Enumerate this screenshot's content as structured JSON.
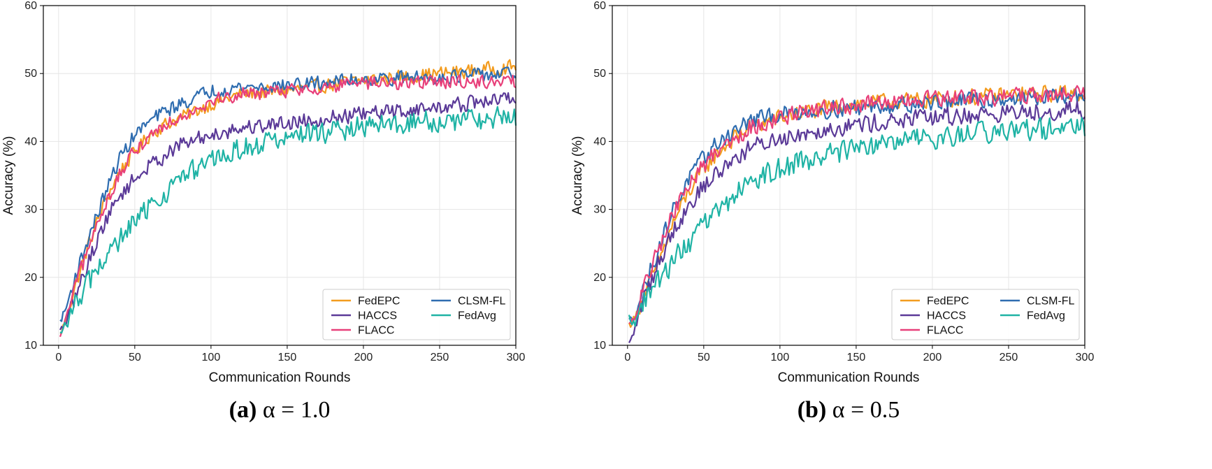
{
  "chart_data": [
    {
      "type": "line",
      "caption": {
        "letter": "(a)",
        "text": " α = 1.0"
      },
      "xlabel": "Communication Rounds",
      "ylabel": "Accuracy (%)",
      "xlim": [
        -10,
        300
      ],
      "ylim": [
        10,
        60
      ],
      "xticks": [
        0,
        50,
        100,
        150,
        200,
        250,
        300
      ],
      "yticks": [
        10,
        20,
        30,
        40,
        50,
        60
      ],
      "grid": true,
      "legend_position": "lower-right",
      "series": [
        {
          "name": "FedEPC",
          "color": "#f39c1f",
          "anchors": [
            [
              1,
              11.5
            ],
            [
              5,
              14
            ],
            [
              10,
              18
            ],
            [
              20,
              25
            ],
            [
              30,
              31
            ],
            [
              40,
              35.5
            ],
            [
              50,
              38.5
            ],
            [
              60,
              41
            ],
            [
              70,
              42.5
            ],
            [
              80,
              43.5
            ],
            [
              100,
              45.5
            ],
            [
              120,
              47
            ],
            [
              150,
              47.5
            ],
            [
              200,
              49
            ],
            [
              250,
              50
            ],
            [
              300,
              51
            ]
          ],
          "amp": 1.0
        },
        {
          "name": "CLSM-FL",
          "color": "#2f6db0",
          "anchors": [
            [
              1,
              13.5
            ],
            [
              5,
              15.5
            ],
            [
              10,
              19.5
            ],
            [
              20,
              26
            ],
            [
              30,
              32
            ],
            [
              40,
              37.5
            ],
            [
              50,
              41
            ],
            [
              60,
              43
            ],
            [
              70,
              44.5
            ],
            [
              80,
              45.5
            ],
            [
              100,
              47.5
            ],
            [
              120,
              48
            ],
            [
              150,
              48.2
            ],
            [
              200,
              49.2
            ],
            [
              250,
              49.5
            ],
            [
              300,
              50
            ]
          ],
          "amp": 1.0
        },
        {
          "name": "HACCS",
          "color": "#5b3a98",
          "anchors": [
            [
              1,
              12
            ],
            [
              5,
              13.5
            ],
            [
              10,
              16.5
            ],
            [
              20,
              22.5
            ],
            [
              30,
              28
            ],
            [
              40,
              32
            ],
            [
              50,
              34.5
            ],
            [
              60,
              36.5
            ],
            [
              70,
              38
            ],
            [
              80,
              39.5
            ],
            [
              100,
              41
            ],
            [
              120,
              42
            ],
            [
              150,
              42.8
            ],
            [
              200,
              44
            ],
            [
              250,
              45
            ],
            [
              300,
              46.5
            ]
          ],
          "amp": 1.1
        },
        {
          "name": "FLACC",
          "color": "#e8407a",
          "anchors": [
            [
              1,
              11
            ],
            [
              5,
              14
            ],
            [
              10,
              18
            ],
            [
              20,
              24.5
            ],
            [
              30,
              30.5
            ],
            [
              40,
              35
            ],
            [
              50,
              38.5
            ],
            [
              60,
              41
            ],
            [
              70,
              42.5
            ],
            [
              80,
              43.8
            ],
            [
              100,
              46
            ],
            [
              120,
              47
            ],
            [
              150,
              47.5
            ],
            [
              200,
              48.5
            ],
            [
              250,
              48.8
            ],
            [
              300,
              48.8
            ]
          ],
          "amp": 1.0
        },
        {
          "name": "FedAvg",
          "color": "#1fb3a5",
          "anchors": [
            [
              1,
              11.5
            ],
            [
              5,
              13
            ],
            [
              10,
              15.5
            ],
            [
              20,
              19.5
            ],
            [
              30,
              22.5
            ],
            [
              40,
              25.5
            ],
            [
              50,
              28
            ],
            [
              60,
              30.5
            ],
            [
              70,
              32.5
            ],
            [
              80,
              34.5
            ],
            [
              100,
              37
            ],
            [
              120,
              39
            ],
            [
              150,
              40.5
            ],
            [
              200,
              42.2
            ],
            [
              250,
              43
            ],
            [
              300,
              43.5
            ]
          ],
          "amp": 1.6
        }
      ],
      "legend": [
        {
          "name": "FedEPC",
          "color": "#f39c1f"
        },
        {
          "name": "CLSM-FL",
          "color": "#2f6db0"
        },
        {
          "name": "HACCS",
          "color": "#5b3a98"
        },
        {
          "name": "FedAvg",
          "color": "#1fb3a5"
        },
        {
          "name": "FLACC",
          "color": "#e8407a"
        }
      ]
    },
    {
      "type": "line",
      "caption": {
        "letter": "(b)",
        "text": " α = 0.5"
      },
      "xlabel": "Communication Rounds",
      "ylabel": "Accuracy (%)",
      "xlim": [
        -10,
        300
      ],
      "ylim": [
        10,
        60
      ],
      "xticks": [
        0,
        50,
        100,
        150,
        200,
        250,
        300
      ],
      "yticks": [
        10,
        20,
        30,
        40,
        50,
        60
      ],
      "grid": true,
      "legend_position": "lower-right",
      "series": [
        {
          "name": "FedEPC",
          "color": "#f39c1f",
          "anchors": [
            [
              1,
              13
            ],
            [
              5,
              14
            ],
            [
              10,
              17
            ],
            [
              20,
              22
            ],
            [
              30,
              28
            ],
            [
              40,
              32.5
            ],
            [
              50,
              36
            ],
            [
              60,
              38.5
            ],
            [
              70,
              40.5
            ],
            [
              80,
              42
            ],
            [
              100,
              43.5
            ],
            [
              120,
              44.5
            ],
            [
              150,
              45.5
            ],
            [
              200,
              46.2
            ],
            [
              250,
              46.8
            ],
            [
              300,
              47.2
            ]
          ],
          "amp": 1.2
        },
        {
          "name": "CLSM-FL",
          "color": "#2f6db0",
          "anchors": [
            [
              1,
              13.5
            ],
            [
              5,
              14.5
            ],
            [
              10,
              18
            ],
            [
              20,
              24
            ],
            [
              30,
              30
            ],
            [
              40,
              34.5
            ],
            [
              50,
              37.5
            ],
            [
              60,
              40
            ],
            [
              70,
              41.5
            ],
            [
              80,
              43
            ],
            [
              100,
              44
            ],
            [
              120,
              44.5
            ],
            [
              150,
              45
            ],
            [
              200,
              45.8
            ],
            [
              250,
              46.3
            ],
            [
              300,
              46.8
            ]
          ],
          "amp": 1.2
        },
        {
          "name": "HACCS",
          "color": "#5b3a98",
          "anchors": [
            [
              1,
              10
            ],
            [
              5,
              12.5
            ],
            [
              10,
              16.5
            ],
            [
              20,
              22
            ],
            [
              30,
              27
            ],
            [
              40,
              30.5
            ],
            [
              50,
              33.5
            ],
            [
              60,
              35.5
            ],
            [
              70,
              37.5
            ],
            [
              80,
              39
            ],
            [
              100,
              40.5
            ],
            [
              120,
              41.5
            ],
            [
              150,
              42.5
            ],
            [
              200,
              43.5
            ],
            [
              250,
              44.2
            ],
            [
              300,
              44.7
            ]
          ],
          "amp": 1.3
        },
        {
          "name": "FLACC",
          "color": "#e8407a",
          "anchors": [
            [
              1,
              13
            ],
            [
              5,
              14
            ],
            [
              10,
              18
            ],
            [
              20,
              24
            ],
            [
              30,
              29.5
            ],
            [
              40,
              33.5
            ],
            [
              50,
              36.5
            ],
            [
              60,
              39
            ],
            [
              70,
              40.5
            ],
            [
              80,
              42
            ],
            [
              100,
              43.5
            ],
            [
              120,
              44.5
            ],
            [
              150,
              45.3
            ],
            [
              200,
              46.2
            ],
            [
              250,
              46.6
            ],
            [
              300,
              47
            ]
          ],
          "amp": 1.2
        },
        {
          "name": "FedAvg",
          "color": "#1fb3a5",
          "anchors": [
            [
              1,
              14
            ],
            [
              5,
              13.5
            ],
            [
              10,
              16
            ],
            [
              20,
              19.5
            ],
            [
              30,
              22.5
            ],
            [
              40,
              25
            ],
            [
              50,
              27.5
            ],
            [
              60,
              30
            ],
            [
              70,
              32
            ],
            [
              80,
              34
            ],
            [
              100,
              36
            ],
            [
              120,
              37.5
            ],
            [
              150,
              39
            ],
            [
              200,
              40.5
            ],
            [
              250,
              41.5
            ],
            [
              300,
              42
            ]
          ],
          "amp": 1.6
        }
      ],
      "legend": [
        {
          "name": "FedEPC",
          "color": "#f39c1f"
        },
        {
          "name": "CLSM-FL",
          "color": "#2f6db0"
        },
        {
          "name": "HACCS",
          "color": "#5b3a98"
        },
        {
          "name": "FedAvg",
          "color": "#1fb3a5"
        },
        {
          "name": "FLACC",
          "color": "#e8407a"
        }
      ]
    }
  ]
}
